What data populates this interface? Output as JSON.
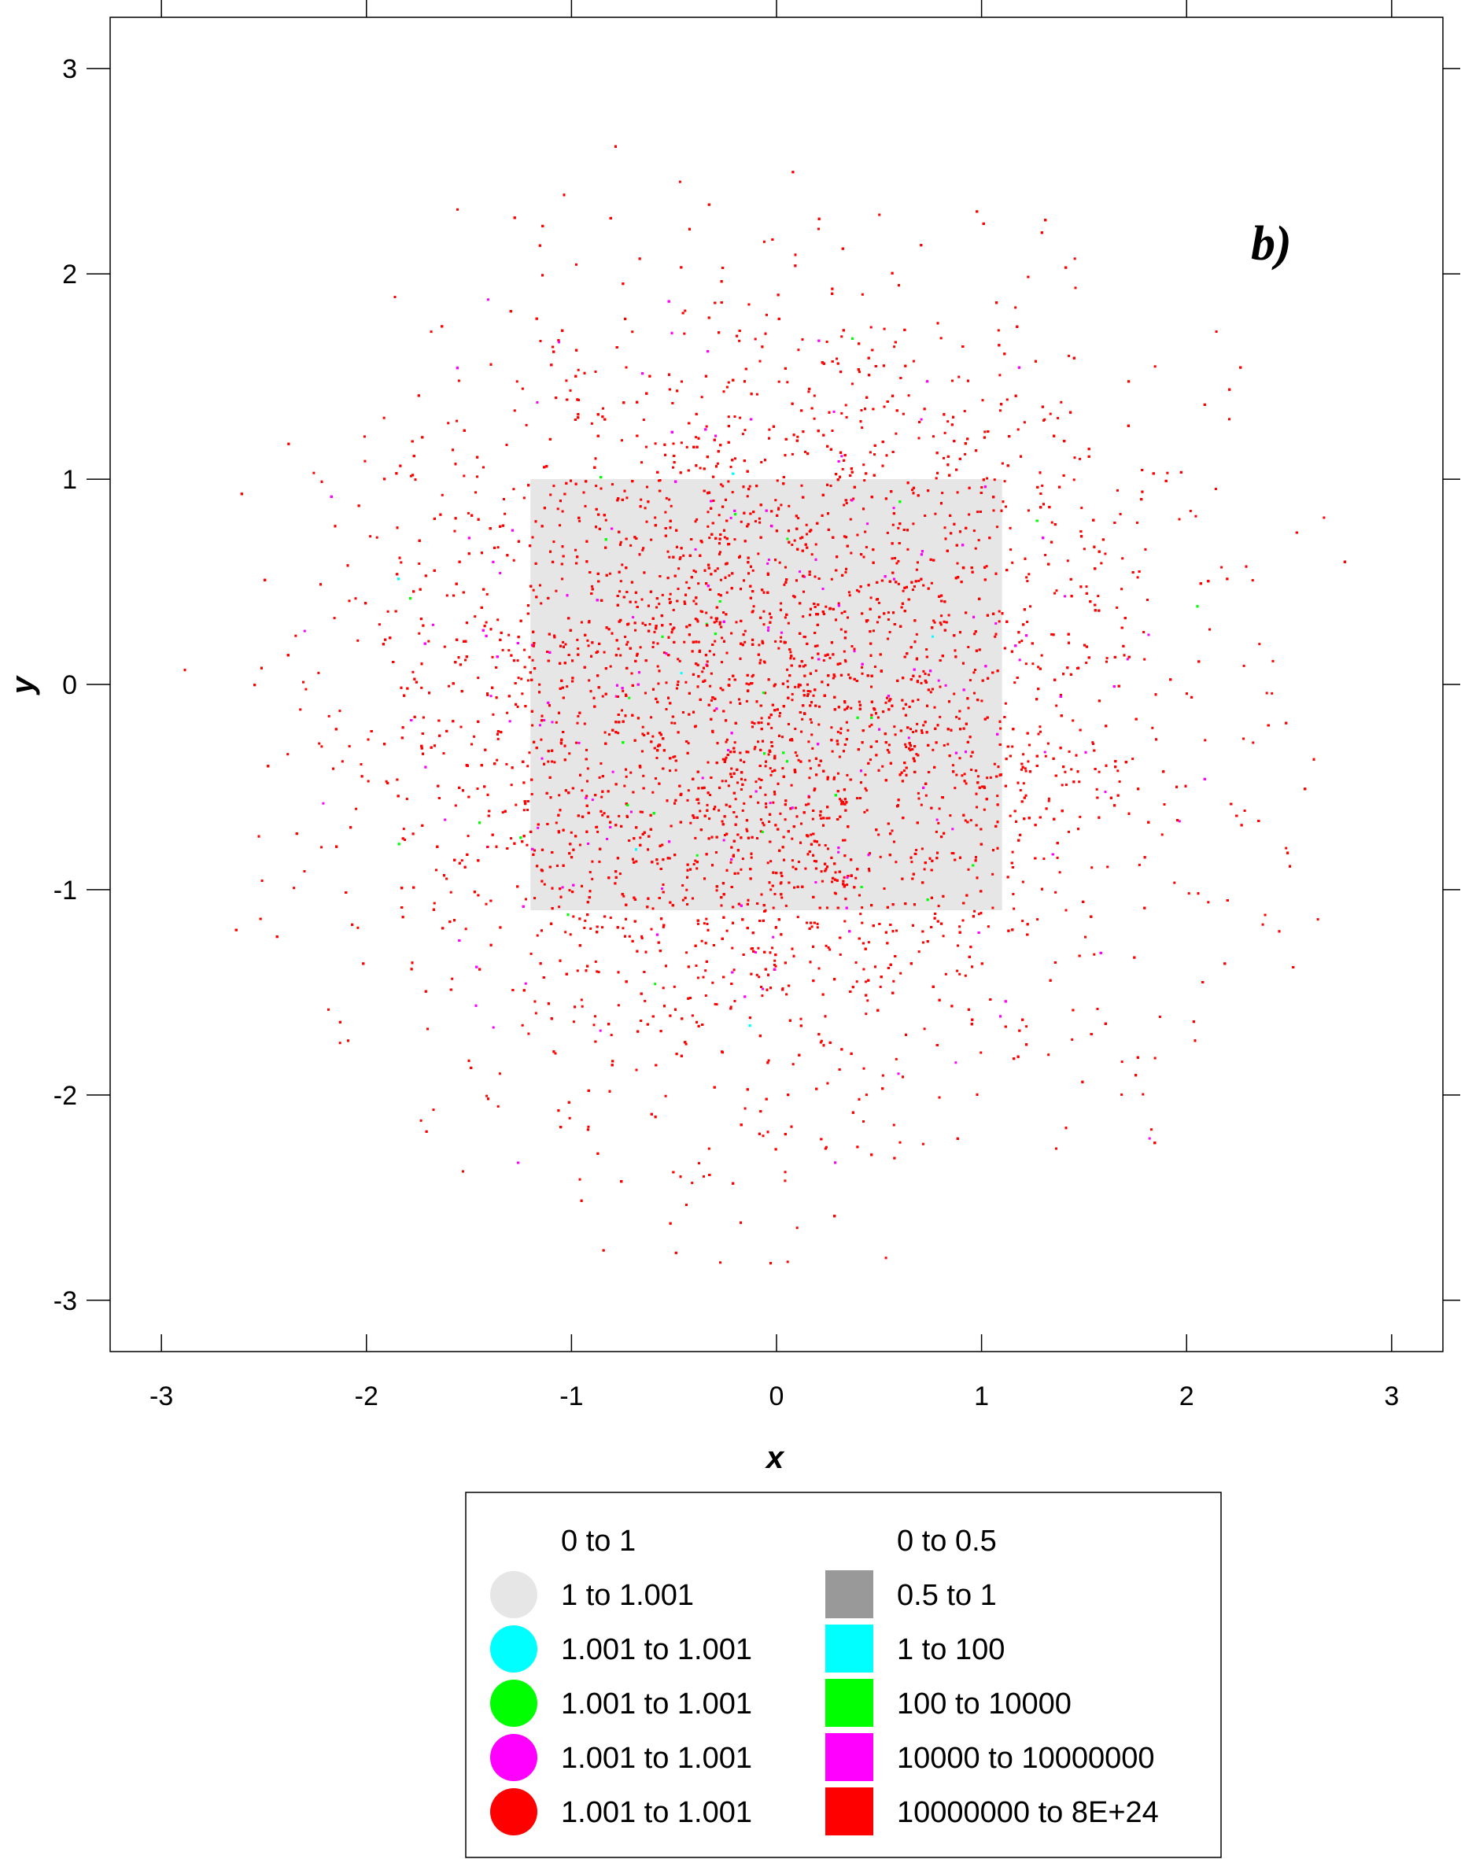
{
  "chart_data": {
    "type": "scatter",
    "panel_label": "b)",
    "xlabel": "x",
    "ylabel": "y",
    "xlim": [
      -3.25,
      3.25
    ],
    "ylim": [
      -3.25,
      3.25
    ],
    "x_ticks": [
      -3,
      -2,
      -1,
      0,
      1,
      2,
      3
    ],
    "y_ticks": [
      -3,
      -2,
      -1,
      0,
      1,
      2,
      3
    ],
    "x_tick_labels": [
      "-3",
      "-2",
      "-1",
      "0",
      "1",
      "2",
      "3"
    ],
    "y_tick_labels": [
      "-3",
      "-2",
      "-1",
      "0",
      "1",
      "2",
      "3"
    ],
    "grid": false,
    "background_region": {
      "description": "light grey dense core",
      "color": "#e6e6e6",
      "x_range": [
        -1.2,
        1.1
      ],
      "y_range": [
        -1.1,
        1.0
      ]
    },
    "point_distribution": {
      "shape": "roughly circular cloud centred at origin",
      "center": [
        -0.1,
        -0.1
      ],
      "approx_radius": 2.5,
      "dominant_color": "#ff0000",
      "minor_colors": [
        "#ff00ff",
        "#00ff00",
        "#00ffff"
      ]
    },
    "legend": {
      "placement": "bottom-center",
      "circle_series": [
        {
          "label": "0 to 1",
          "color": null
        },
        {
          "label": "1 to 1.001",
          "color": "#e6e6e6"
        },
        {
          "label": "1.001 to 1.001",
          "color": "#00ffff"
        },
        {
          "label": "1.001 to 1.001",
          "color": "#00ff00"
        },
        {
          "label": "1.001 to 1.001",
          "color": "#ff00ff"
        },
        {
          "label": "1.001 to 1.001",
          "color": "#ff0000"
        }
      ],
      "square_series": [
        {
          "label": "0 to 0.5",
          "color": null
        },
        {
          "label": "0.5 to 1",
          "color": "#999999"
        },
        {
          "label": "1 to 100",
          "color": "#00ffff"
        },
        {
          "label": "100 to 10000",
          "color": "#00ff00"
        },
        {
          "label": "10000 to 10000000",
          "color": "#ff00ff"
        },
        {
          "label": "10000000 to 8E+24",
          "color": "#ff0000"
        }
      ]
    }
  }
}
